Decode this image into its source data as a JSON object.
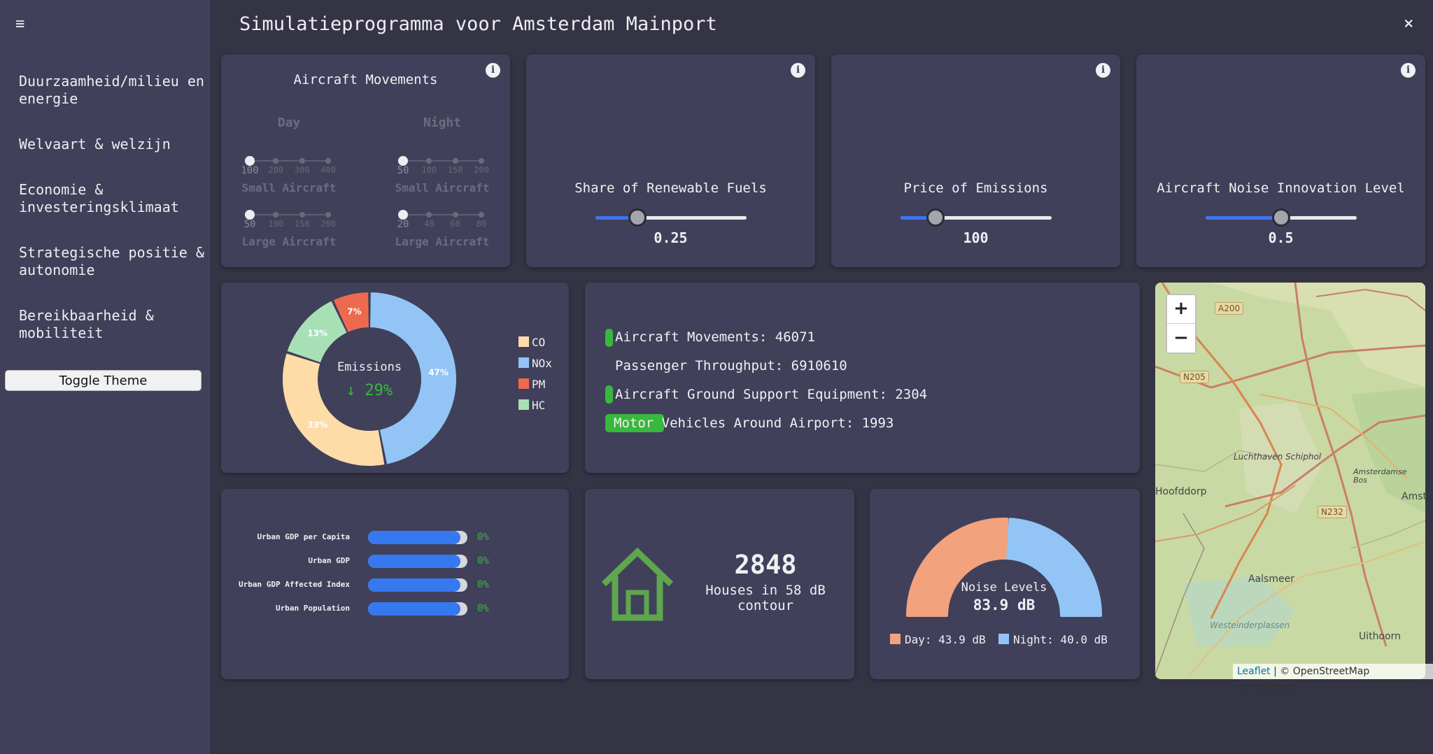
{
  "header": {
    "title": "Simulatieprogramma voor Amsterdam Mainport",
    "close_symbol": "×"
  },
  "sidebar": {
    "menu_symbol": "≡",
    "items": [
      {
        "label": "Duurzaamheid/milieu en energie"
      },
      {
        "label": "Welvaart & welzijn"
      },
      {
        "label": "Economie & investeringsklimaat"
      },
      {
        "label": "Strategische positie & autonomie"
      },
      {
        "label": "Bereikbaarheid & mobiliteit"
      }
    ],
    "toggle_label": "Toggle Theme"
  },
  "aircraft_movements": {
    "title": "Aircraft Movements",
    "day": {
      "heading": "Day",
      "small": {
        "label": "Small Aircraft",
        "ticks": [
          "100",
          "200",
          "300",
          "400"
        ],
        "selected": 0
      },
      "large": {
        "label": "Large Aircraft",
        "ticks": [
          "50",
          "100",
          "150",
          "200"
        ],
        "selected": 0
      }
    },
    "night": {
      "heading": "Night",
      "small": {
        "label": "Small Aircraft",
        "ticks": [
          "50",
          "100",
          "150",
          "200"
        ],
        "selected": 0
      },
      "large": {
        "label": "Large Aircraft",
        "ticks": [
          "20",
          "40",
          "60",
          "80"
        ],
        "selected": 0
      }
    }
  },
  "sliders": [
    {
      "title": "Share of Renewable Fuels",
      "value": "0.25",
      "fraction": 0.28
    },
    {
      "title": "Price of Emissions",
      "value": "100",
      "fraction": 0.23
    },
    {
      "title": "Aircraft Noise Innovation Level",
      "value": "0.5",
      "fraction": 0.5
    }
  ],
  "info_symbol": "i",
  "emissions": {
    "center_title": "Emissions",
    "change": "↓ 29%",
    "slices": [
      {
        "name": "NOx",
        "percent": 47,
        "label": "47%",
        "color": "#92c5f5"
      },
      {
        "name": "CO",
        "percent": 33,
        "label": "33%",
        "color": "#fddca8"
      },
      {
        "name": "HC",
        "percent": 13,
        "label": "13%",
        "color": "#a8e0b6"
      },
      {
        "name": "PM",
        "percent": 7,
        "label": "7%",
        "color": "#ee6a4e"
      }
    ],
    "legend": [
      {
        "name": "CO",
        "color": "#fddca8"
      },
      {
        "name": "NOx",
        "color": "#92c5f5"
      },
      {
        "name": "PM",
        "color": "#ee6a4e"
      },
      {
        "name": "HC",
        "color": "#a8e0b6"
      }
    ]
  },
  "stats": {
    "aircraft_movements": "Aircraft Movements: 46071",
    "passenger_throughput": "Passenger Throughput: 6910610",
    "ground_support": "Aircraft Ground Support Equipment: 2304",
    "motor_prefix": "Motor",
    "motor_rest": " Vehicles Around Airport: 1993"
  },
  "gdp": [
    {
      "label": "Urban GDP per Capita",
      "value": "0%"
    },
    {
      "label": "Urban GDP",
      "value": "0%"
    },
    {
      "label": "Urban GDP Affected Index",
      "value": "0%"
    },
    {
      "label": "Urban Population",
      "value": "0%"
    }
  ],
  "houses": {
    "count": "2848",
    "label": "Houses in 58 dB contour"
  },
  "noise": {
    "label": "Noise Levels",
    "value": "83.9 dB",
    "day_label": "Day: 43.9 dB",
    "night_label": "Night: 40.0 dB",
    "day_color": "#f3a27e",
    "night_color": "#92c5f5"
  },
  "map": {
    "zoom_in": "+",
    "zoom_out": "−",
    "attribution_link": "Leaflet",
    "attribution_text": " | © OpenStreetMap contributors",
    "places": [
      "Luchthaven Schiphol",
      "Hoofddorp",
      "Aalsmeer",
      "Amsterdamse Bos",
      "Amste",
      "Westeinderplassen",
      "Uithoorn"
    ],
    "roads": [
      "A200",
      "N205",
      "N232"
    ]
  }
}
